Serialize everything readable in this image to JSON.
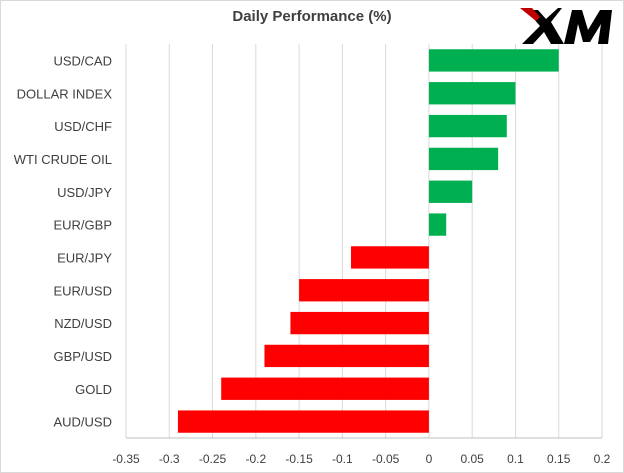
{
  "brand": {
    "logo_text": "XM",
    "logo_color": "#000000",
    "logo_accent": "#c00000"
  },
  "colors": {
    "positive": "#00b050",
    "negative": "#ff0000",
    "grid": "#d9d9d9",
    "axis": "#bfbfbf"
  },
  "chart_data": {
    "type": "bar",
    "orientation": "horizontal",
    "title": "Daily Performance (%)",
    "xlabel": "",
    "ylabel": "",
    "categories": [
      "USD/CAD",
      "DOLLAR INDEX",
      "USD/CHF",
      "WTI CRUDE OIL",
      "USD/JPY",
      "EUR/GBP",
      "EUR/JPY",
      "EUR/USD",
      "NZD/USD",
      "GBP/USD",
      "GOLD",
      "AUD/USD"
    ],
    "values": [
      0.15,
      0.1,
      0.09,
      0.08,
      0.05,
      0.02,
      -0.09,
      -0.15,
      -0.16,
      -0.19,
      -0.24,
      -0.29
    ],
    "xlim": [
      -0.35,
      0.2
    ],
    "xticks": [
      -0.35,
      -0.3,
      -0.25,
      -0.2,
      -0.15,
      -0.1,
      -0.05,
      0,
      0.05,
      0.1,
      0.15,
      0.2
    ],
    "xtick_labels": [
      "-0.35",
      "-0.3",
      "-0.25",
      "-0.2",
      "-0.15",
      "-0.1",
      "-0.05",
      "0",
      "0.05",
      "0.1",
      "0.15",
      "0.2"
    ],
    "grid": true,
    "legend": "none"
  }
}
